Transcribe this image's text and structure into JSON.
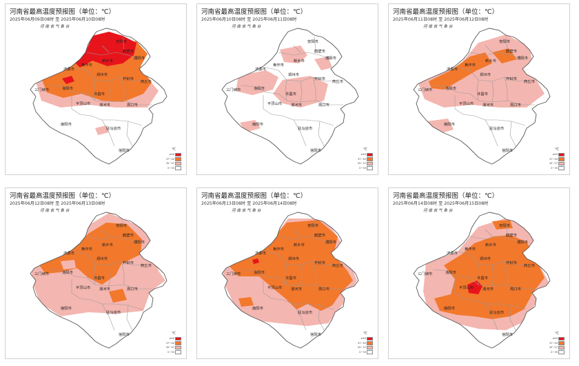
{
  "panels": [
    {
      "title": "河南省最高温度预报图（单位：℃）",
      "date": "2025年06月09日08时 至 2025年06月10日08时",
      "org": "河 南 省 气 象 台"
    },
    {
      "title": "河南省最高温度预报图（单位：℃）",
      "date": "2025年06月10日08时 至 2025年06月11日08时",
      "org": "河 南 省 气 象 台"
    },
    {
      "title": "河南省最高温度预报图（单位：℃）",
      "date": "2025年06月11日08时 至 2025年06月12日08时",
      "org": "河 南 省 气 象 台"
    },
    {
      "title": "河南省最高温度预报图（单位：℃）",
      "date": "2025年06月12日08时 至 2025年06月13日08时",
      "org": "河 南 省 气 象 台"
    },
    {
      "title": "河南省最高温度预报图（单位：℃）",
      "date": "2025年06月13日08时 至 2025年06月14日08时",
      "org": "河 南 省 气 象 台"
    },
    {
      "title": "河南省最高温度预报图（单位：℃）",
      "date": "2025年06月14日08时 至 2025年06月15日08时",
      "org": "河 南 省 气 象 台"
    }
  ],
  "cities": {
    "anyang": "安阳市",
    "hebi": "鹤壁市",
    "puyang": "濮阳市",
    "xinxiang": "新乡市",
    "jiaozuo": "焦作市",
    "jiyuan": "济源市",
    "zhengzhou": "郑州市",
    "kaifeng": "开封市",
    "shangqiu": "商丘市",
    "sanmenxia": "三门峡市",
    "luoyang": "洛阳市",
    "pingdingshan": "平顶山市",
    "xuchang": "许昌市",
    "luohe": "漯河市",
    "zhoukou": "周口市",
    "nanyang": "南阳市",
    "zhumadian": "驻马店市",
    "xinyang": "信阳市"
  },
  "legend": {
    "unit": "℃",
    "items": [
      {
        "label": "≥40",
        "color": "#e8141b"
      },
      {
        "label": "37~40",
        "color": "#f2782c"
      },
      {
        "label": "35~37",
        "color": "#f4b6b0"
      },
      {
        "label": "0~35",
        "color": "#ffffff"
      }
    ]
  },
  "colors": {
    "ge40": "#e8141b",
    "c37_40": "#f2782c",
    "c35_37": "#f4b6b0",
    "boundary": "#555555",
    "inner_boundary": "#9a9a9a"
  }
}
